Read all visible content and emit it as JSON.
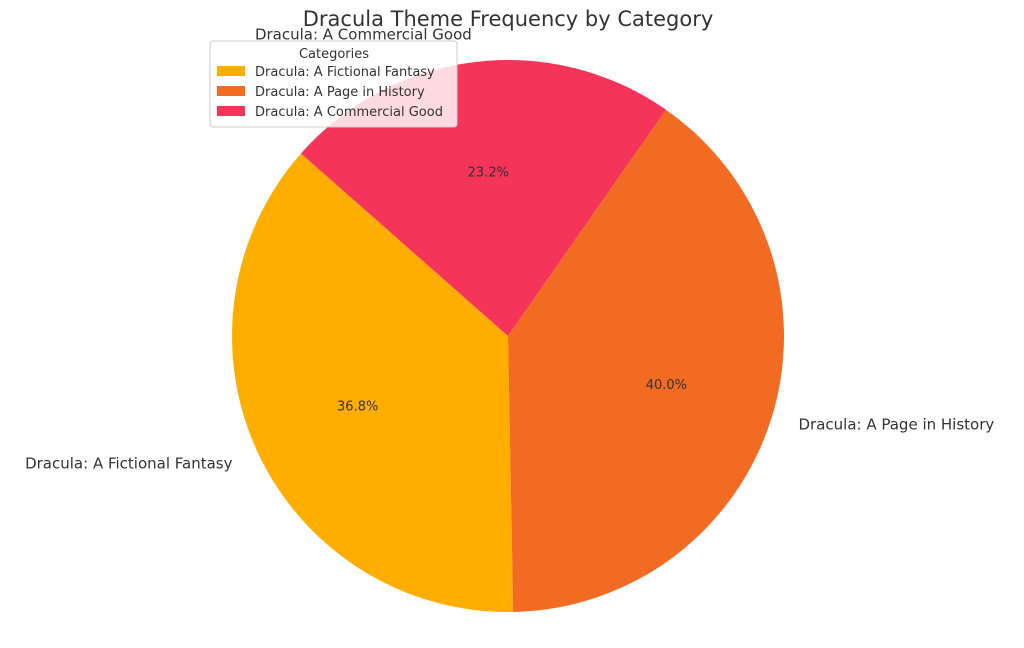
{
  "chart_data": {
    "type": "pie",
    "title": "Dracula Theme Frequency by Category",
    "slices": [
      {
        "label": "Dracula: A Fictional Fantasy",
        "value": 36.8,
        "pct_label": "36.8%",
        "color": "#FFAE00"
      },
      {
        "label": "Dracula: A Page in History",
        "value": 40.0,
        "pct_label": "40.0%",
        "color": "#F26B22"
      },
      {
        "label": "Dracula: A Commercial Good",
        "value": 23.2,
        "pct_label": "23.2%",
        "color": "#F43459"
      }
    ],
    "legend": {
      "title": "Categories",
      "placement": "upper-left"
    }
  }
}
